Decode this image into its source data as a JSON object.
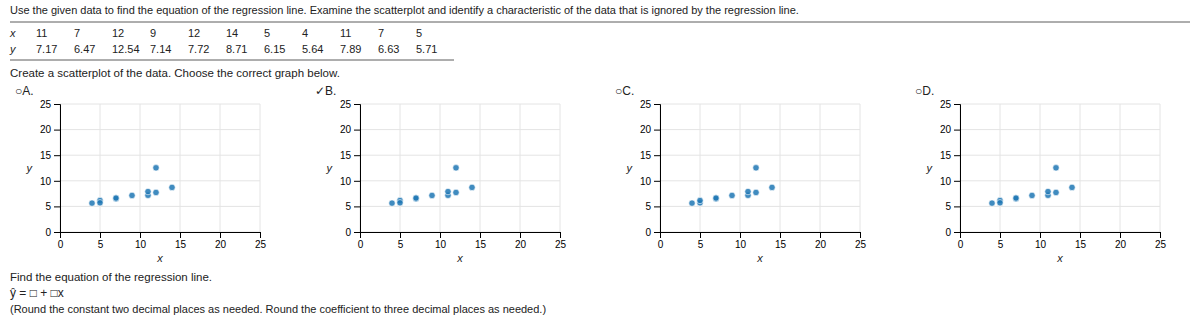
{
  "title": "Use the given data to find the equation of the regression line. Examine the scatterplot and identify a characteristic of the data that is ignored by the regression line.",
  "table": {
    "row_labels": [
      "x",
      "y"
    ],
    "x": [
      11,
      7,
      12,
      9,
      12,
      14,
      5,
      4,
      11,
      7,
      5
    ],
    "y": [
      7.17,
      6.47,
      12.54,
      7.14,
      7.72,
      8.71,
      6.15,
      5.64,
      7.89,
      6.63,
      5.71
    ]
  },
  "annotations": [
    "Create a scatterplot of the data. Choose the correct graph below.",
    "Find the equation of the regression line.",
    "ŷ = □ + □x",
    "(Round the constant two decimal places as needed. Round the coefficient to three decimal places as needed.)"
  ],
  "chart_data": [
    {
      "type": "scatter",
      "title": "○A.",
      "xlabel": "x",
      "ylabel": "y",
      "x": [
        7,
        5,
        4,
        7,
        5,
        9,
        11,
        11,
        12,
        12,
        14
      ],
      "values": [
        6.47,
        6.15,
        5.64,
        6.63,
        5.71,
        7.14,
        7.17,
        7.89,
        7.72,
        12.54,
        8.71
      ],
      "xlim": [
        0,
        25
      ],
      "ylim": [
        0,
        25
      ],
      "xticks": [
        0,
        5,
        10,
        15,
        20,
        25
      ],
      "yticks": [
        0,
        5,
        10,
        15,
        20,
        25
      ],
      "grid": true
    },
    {
      "type": "scatter",
      "title": "✓B.",
      "xlabel": "x",
      "ylabel": "y",
      "x": [
        11,
        7,
        12,
        9,
        12,
        14,
        5,
        4,
        11,
        7,
        5
      ],
      "values": [
        7.17,
        6.47,
        12.54,
        7.14,
        7.72,
        8.71,
        6.15,
        5.64,
        7.89,
        6.63,
        5.71
      ],
      "xlim": [
        0,
        25
      ],
      "ylim": [
        0,
        25
      ],
      "xticks": [
        0,
        5,
        10,
        15,
        20,
        25
      ],
      "yticks": [
        0,
        5,
        10,
        15,
        20,
        25
      ],
      "grid": true
    },
    {
      "type": "scatter",
      "title": "○C.",
      "xlabel": "x",
      "ylabel": "y",
      "x": [
        4,
        5,
        5,
        7,
        7,
        9,
        11,
        11,
        12,
        12,
        14
      ],
      "values": [
        5.64,
        5.71,
        6.15,
        6.47,
        6.63,
        7.14,
        7.17,
        7.89,
        7.72,
        12.54,
        8.71
      ],
      "xlim": [
        0,
        25
      ],
      "ylim": [
        0,
        25
      ],
      "xticks": [
        0,
        5,
        10,
        15,
        20,
        25
      ],
      "yticks": [
        0,
        5,
        10,
        15,
        20,
        25
      ],
      "grid": true
    },
    {
      "type": "scatter",
      "title": "○D.",
      "xlabel": "x",
      "ylabel": "y",
      "x": [
        11,
        7,
        12,
        9,
        12,
        14,
        5,
        4,
        11,
        7,
        5
      ],
      "values": [
        7.17,
        6.47,
        12.54,
        7.14,
        7.72,
        8.71,
        6.15,
        5.64,
        7.89,
        6.63,
        5.71
      ],
      "xlim": [
        0,
        25
      ],
      "ylim": [
        0,
        25
      ],
      "xticks": [
        0,
        5,
        10,
        15,
        20,
        25
      ],
      "yticks": [
        0,
        5,
        10,
        15,
        20,
        25
      ],
      "grid": true
    }
  ]
}
